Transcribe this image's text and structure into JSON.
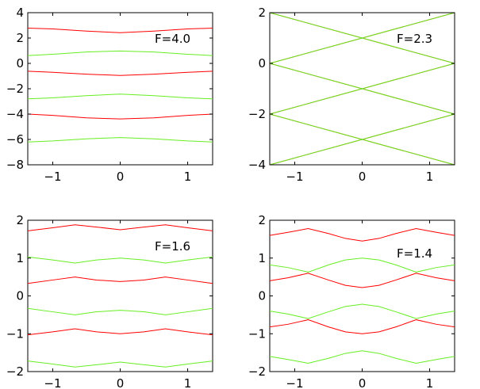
{
  "colors": {
    "red": "#ff0000",
    "green": "#66ee22"
  },
  "chart_data": [
    {
      "type": "line",
      "title": "",
      "annotation": "F=4.0",
      "xlim": [
        -1.37,
        1.37
      ],
      "ylim": [
        -8,
        4
      ],
      "xticks": [
        -1,
        0,
        1
      ],
      "yticks": [
        -8,
        -6,
        -4,
        -2,
        0,
        2,
        4
      ],
      "x": [
        -1.37,
        -1,
        -0.5,
        0,
        0.5,
        1,
        1.37
      ],
      "series": [
        {
          "color": "red",
          "values": [
            2.78,
            2.72,
            2.55,
            2.42,
            2.55,
            2.72,
            2.78
          ]
        },
        {
          "color": "green",
          "values": [
            0.62,
            0.72,
            0.9,
            0.98,
            0.9,
            0.72,
            0.62
          ]
        },
        {
          "color": "red",
          "values": [
            -0.62,
            -0.7,
            -0.85,
            -0.95,
            -0.85,
            -0.7,
            -0.62
          ]
        },
        {
          "color": "green",
          "values": [
            -2.8,
            -2.72,
            -2.55,
            -2.42,
            -2.55,
            -2.72,
            -2.8
          ]
        },
        {
          "color": "red",
          "values": [
            -4.0,
            -4.1,
            -4.3,
            -4.38,
            -4.3,
            -4.1,
            -4.0
          ]
        },
        {
          "color": "green",
          "values": [
            -6.2,
            -6.12,
            -5.95,
            -5.85,
            -5.95,
            -6.12,
            -6.2
          ]
        }
      ]
    },
    {
      "type": "line",
      "title": "",
      "annotation": "F=2.3",
      "xlim": [
        -1.37,
        1.37
      ],
      "ylim": [
        -4,
        2
      ],
      "xticks": [
        -1,
        0,
        1
      ],
      "yticks": [
        -4,
        -2,
        0,
        2
      ],
      "x": [
        -1.37,
        0,
        1.37
      ],
      "series": [
        {
          "color": "red",
          "values": [
            2.0,
            1.0,
            0.0
          ]
        },
        {
          "color": "red",
          "values": [
            0.0,
            -1.0,
            -2.0
          ]
        },
        {
          "color": "red",
          "values": [
            -2.0,
            -3.0,
            -4.0
          ]
        },
        {
          "color": "red",
          "values": [
            -4.0,
            -3.0,
            -2.0
          ]
        },
        {
          "color": "red",
          "values": [
            -2.0,
            -1.0,
            0.0
          ]
        },
        {
          "color": "red",
          "values": [
            0.0,
            1.0,
            2.0
          ]
        },
        {
          "color": "green",
          "values": [
            0.0,
            1.0,
            2.0
          ]
        },
        {
          "color": "green",
          "values": [
            -2.0,
            -1.0,
            0.0
          ]
        },
        {
          "color": "green",
          "values": [
            -4.0,
            -3.0,
            -2.0
          ]
        },
        {
          "color": "green",
          "values": [
            2.0,
            1.0,
            0.0
          ]
        },
        {
          "color": "green",
          "values": [
            0.0,
            -1.0,
            -2.0
          ]
        },
        {
          "color": "green",
          "values": [
            -2.0,
            -3.0,
            -4.0
          ]
        }
      ]
    },
    {
      "type": "line",
      "title": "",
      "annotation": "F=1.6",
      "xlim": [
        -1.37,
        1.37
      ],
      "ylim": [
        -2,
        2
      ],
      "xticks": [
        -1,
        0,
        1
      ],
      "yticks": [
        -2,
        -1,
        0,
        1,
        2
      ],
      "x": [
        -1.37,
        -1.0,
        -0.67,
        -0.35,
        0,
        0.35,
        0.67,
        1.0,
        1.37
      ],
      "series": [
        {
          "color": "red",
          "values": [
            1.72,
            1.8,
            1.88,
            1.82,
            1.75,
            1.82,
            1.88,
            1.8,
            1.72
          ]
        },
        {
          "color": "green",
          "values": [
            1.03,
            0.95,
            0.87,
            0.95,
            1.0,
            0.95,
            0.87,
            0.95,
            1.03
          ]
        },
        {
          "color": "red",
          "values": [
            0.33,
            0.42,
            0.5,
            0.42,
            0.38,
            0.42,
            0.5,
            0.42,
            0.33
          ]
        },
        {
          "color": "green",
          "values": [
            -0.33,
            -0.42,
            -0.5,
            -0.42,
            -0.38,
            -0.42,
            -0.5,
            -0.42,
            -0.33
          ]
        },
        {
          "color": "red",
          "values": [
            -1.03,
            -0.95,
            -0.87,
            -0.95,
            -1.0,
            -0.95,
            -0.87,
            -0.95,
            -1.03
          ]
        },
        {
          "color": "green",
          "values": [
            -1.72,
            -1.8,
            -1.88,
            -1.82,
            -1.75,
            -1.82,
            -1.88,
            -1.8,
            -1.72
          ]
        }
      ]
    },
    {
      "type": "line",
      "title": "",
      "annotation": "F=1.4",
      "xlim": [
        -1.37,
        1.37
      ],
      "ylim": [
        -2,
        2
      ],
      "xticks": [
        -1,
        0,
        1
      ],
      "yticks": [
        -2,
        -1,
        0,
        1,
        2
      ],
      "x": [
        -1.37,
        -1.1,
        -0.8,
        -0.5,
        -0.25,
        0,
        0.25,
        0.5,
        0.8,
        1.1,
        1.37
      ],
      "series": [
        {
          "color": "red",
          "values": [
            1.6,
            1.68,
            1.78,
            1.65,
            1.52,
            1.45,
            1.52,
            1.65,
            1.78,
            1.68,
            1.6
          ]
        },
        {
          "color": "green",
          "values": [
            0.82,
            0.75,
            0.63,
            0.82,
            0.95,
            1.0,
            0.95,
            0.82,
            0.63,
            0.75,
            0.82
          ]
        },
        {
          "color": "red",
          "values": [
            0.4,
            0.48,
            0.6,
            0.42,
            0.28,
            0.22,
            0.28,
            0.42,
            0.6,
            0.48,
            0.4
          ]
        },
        {
          "color": "green",
          "values": [
            -0.4,
            -0.48,
            -0.6,
            -0.42,
            -0.28,
            -0.22,
            -0.28,
            -0.42,
            -0.6,
            -0.48,
            -0.4
          ]
        },
        {
          "color": "red",
          "values": [
            -0.82,
            -0.75,
            -0.63,
            -0.82,
            -0.95,
            -1.0,
            -0.95,
            -0.82,
            -0.63,
            -0.75,
            -0.82
          ]
        },
        {
          "color": "green",
          "values": [
            -1.6,
            -1.68,
            -1.78,
            -1.65,
            -1.52,
            -1.45,
            -1.52,
            -1.65,
            -1.78,
            -1.68,
            -1.6
          ]
        }
      ]
    }
  ]
}
